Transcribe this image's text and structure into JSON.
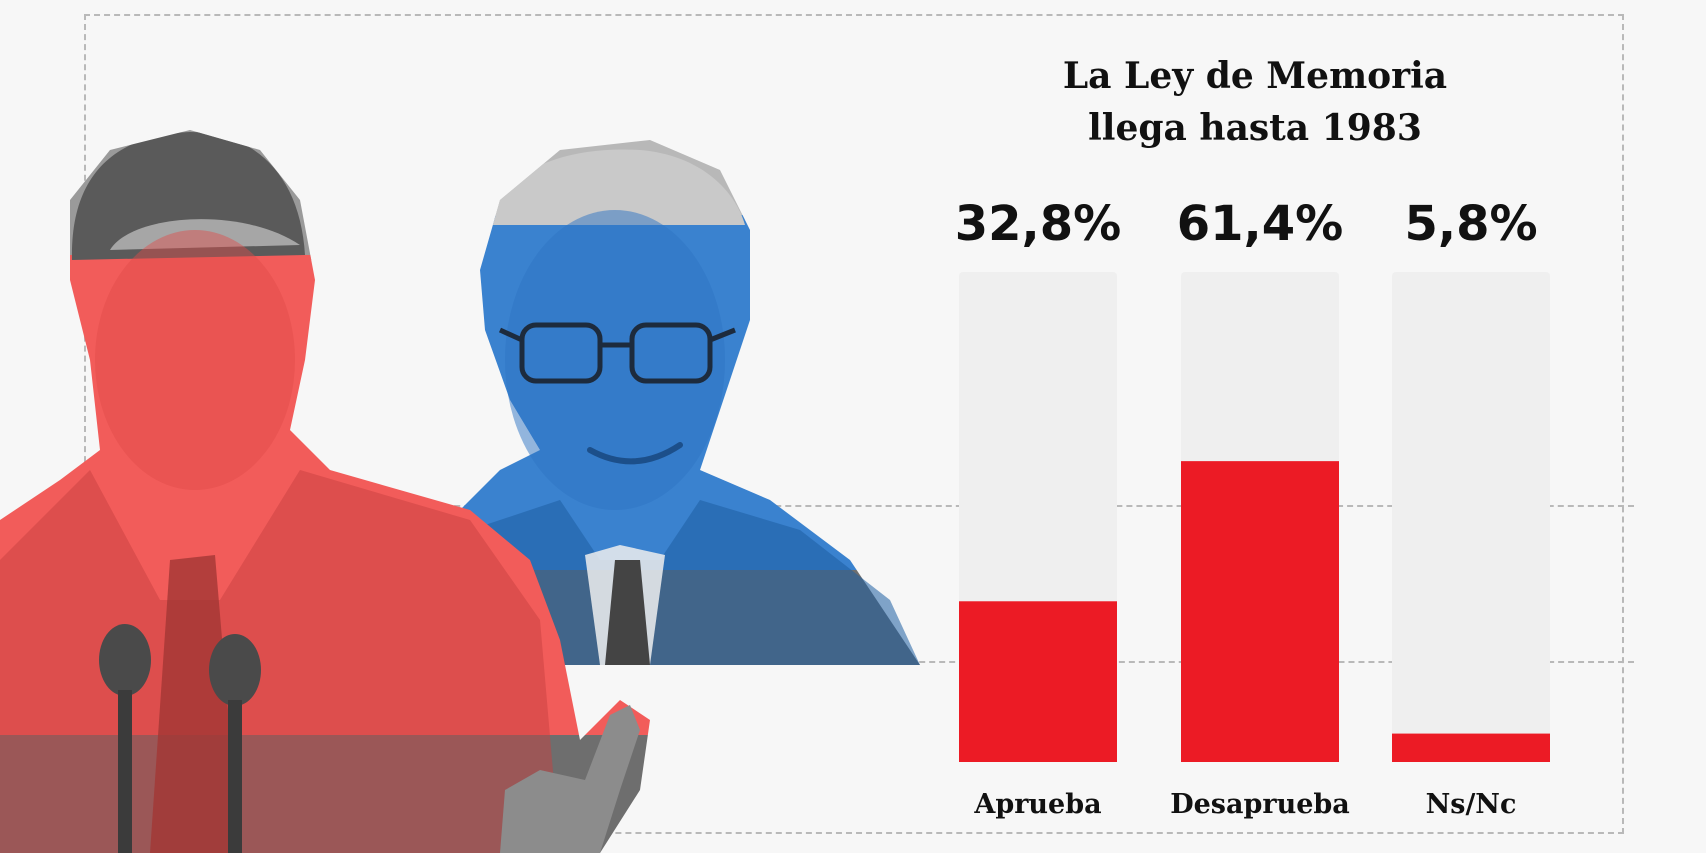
{
  "colors": {
    "bar_fill": "#ec1b25",
    "bar_track": "#efefef",
    "background": "#f7f7f7",
    "gridline": "#b9b9b9",
    "left_figure_tint": "#f25c5a",
    "right_figure_tint": "#3a82cf",
    "figure_gray": "#6e6e6e"
  },
  "photos": {
    "left_figure_icon": "politician-photo-red-tint",
    "right_figure_icon": "politician-photo-blue-tint"
  },
  "chart_data": {
    "type": "bar",
    "title": "La Ley de Memoria llega hasta 1983",
    "title_lines": [
      "La Ley de Memoria",
      "llega hasta 1983"
    ],
    "categories": [
      "Aprueba",
      "Desaprueba",
      "Ns/Nc"
    ],
    "values": [
      32.8,
      61.4,
      5.8
    ],
    "value_labels": [
      "32,8%",
      "61,4%",
      "5,8%"
    ],
    "unit": "%",
    "ylim": [
      0,
      100
    ],
    "xlabel": "",
    "ylabel": "",
    "grid": false,
    "legend": "none"
  }
}
